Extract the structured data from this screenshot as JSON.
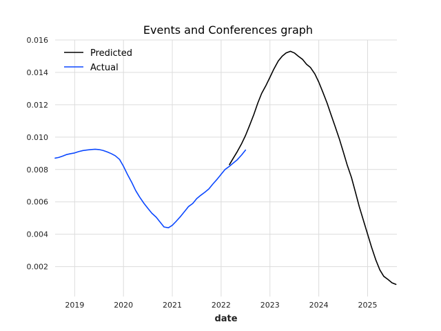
{
  "chart_data": {
    "type": "line",
    "title": "Events and Conferences graph",
    "xlabel": "date",
    "ylabel": "",
    "xlim": [
      2018.6,
      2025.6
    ],
    "ylim": [
      0.00015,
      0.016
    ],
    "xticks": [
      2019,
      2020,
      2021,
      2022,
      2023,
      2024,
      2025
    ],
    "xtick_labels": [
      "2019",
      "2020",
      "2021",
      "2022",
      "2023",
      "2024",
      "2025"
    ],
    "yticks": [
      0.002,
      0.004,
      0.006,
      0.008,
      0.01,
      0.012,
      0.014,
      0.016
    ],
    "ytick_labels": [
      "0.002",
      "0.004",
      "0.006",
      "0.008",
      "0.010",
      "0.012",
      "0.014",
      "0.016"
    ],
    "grid": true,
    "legend": "top-left",
    "series": [
      {
        "name": "Predicted",
        "color": "#000000",
        "x": [
          2022.17,
          2022.25,
          2022.33,
          2022.42,
          2022.5,
          2022.58,
          2022.67,
          2022.75,
          2022.83,
          2022.92,
          2023.0,
          2023.08,
          2023.17,
          2023.25,
          2023.33,
          2023.42,
          2023.5,
          2023.58,
          2023.67,
          2023.75,
          2023.83,
          2023.92,
          2024.0,
          2024.08,
          2024.17,
          2024.25,
          2024.33,
          2024.42,
          2024.5,
          2024.58,
          2024.67,
          2024.75,
          2024.83,
          2024.92,
          2025.0,
          2025.08,
          2025.17,
          2025.25,
          2025.33,
          2025.42,
          2025.5,
          2025.58
        ],
        "y": [
          0.0083,
          0.0087,
          0.0091,
          0.0096,
          0.0101,
          0.0107,
          0.0114,
          0.0121,
          0.0127,
          0.0132,
          0.0137,
          0.0142,
          0.0147,
          0.015,
          0.0152,
          0.0153,
          0.0152,
          0.015,
          0.0148,
          0.0145,
          0.0143,
          0.0139,
          0.0134,
          0.0128,
          0.0121,
          0.0114,
          0.0107,
          0.0099,
          0.0091,
          0.0083,
          0.0075,
          0.0066,
          0.0057,
          0.0048,
          0.004,
          0.0032,
          0.0024,
          0.0018,
          0.0014,
          0.0012,
          0.001,
          0.0009
        ]
      },
      {
        "name": "Actual",
        "color": "#0a47ff",
        "x": [
          2018.6,
          2018.67,
          2018.75,
          2018.83,
          2018.92,
          2019.0,
          2019.08,
          2019.17,
          2019.25,
          2019.33,
          2019.42,
          2019.5,
          2019.58,
          2019.67,
          2019.75,
          2019.83,
          2019.92,
          2020.0,
          2020.08,
          2020.17,
          2020.25,
          2020.33,
          2020.42,
          2020.5,
          2020.58,
          2020.67,
          2020.75,
          2020.83,
          2020.92,
          2021.0,
          2021.08,
          2021.17,
          2021.25,
          2021.33,
          2021.42,
          2021.5,
          2021.58,
          2021.67,
          2021.75,
          2021.83,
          2021.92,
          2022.0,
          2022.08,
          2022.17,
          2022.25,
          2022.33,
          2022.42,
          2022.5
        ],
        "y": [
          0.0087,
          0.00874,
          0.00882,
          0.00892,
          0.00898,
          0.00902,
          0.0091,
          0.00917,
          0.0092,
          0.00923,
          0.00925,
          0.00923,
          0.00918,
          0.00908,
          0.00898,
          0.00885,
          0.00862,
          0.0082,
          0.0077,
          0.0072,
          0.0067,
          0.0063,
          0.0059,
          0.0056,
          0.0053,
          0.00505,
          0.00475,
          0.00445,
          0.0044,
          0.00455,
          0.0048,
          0.0051,
          0.0054,
          0.0057,
          0.0059,
          0.0062,
          0.0064,
          0.0066,
          0.0068,
          0.0071,
          0.0074,
          0.0077,
          0.008,
          0.0082,
          0.0084,
          0.0086,
          0.0089,
          0.0092
        ]
      }
    ]
  }
}
